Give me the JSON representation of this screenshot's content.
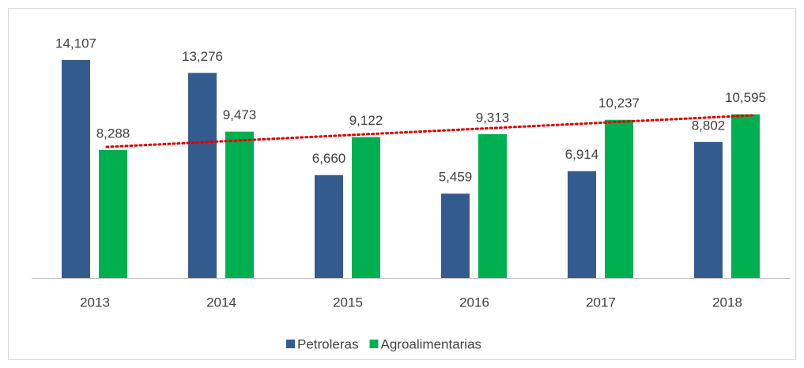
{
  "chart_data": {
    "type": "bar",
    "categories": [
      "2013",
      "2014",
      "2015",
      "2016",
      "2017",
      "2018"
    ],
    "series": [
      {
        "name": "Petroleras",
        "color": "#345b8d",
        "values": [
          14107,
          13276,
          6660,
          5459,
          6914,
          8802
        ],
        "value_labels": [
          "14,107",
          "13,276",
          "6,660",
          "5,459",
          "6,914",
          "8,802"
        ]
      },
      {
        "name": "Agroalimentarias",
        "color": "#00b050",
        "values": [
          8288,
          9473,
          9122,
          9313,
          10237,
          10595
        ],
        "value_labels": [
          "8,288",
          "9,473",
          "9,122",
          "9,313",
          "10,237",
          "10,595"
        ]
      }
    ],
    "ylim": [
      0,
      16000
    ],
    "legend": "bottom",
    "trendline": {
      "series": 1,
      "kind": "linear",
      "color": "#e00000"
    }
  }
}
